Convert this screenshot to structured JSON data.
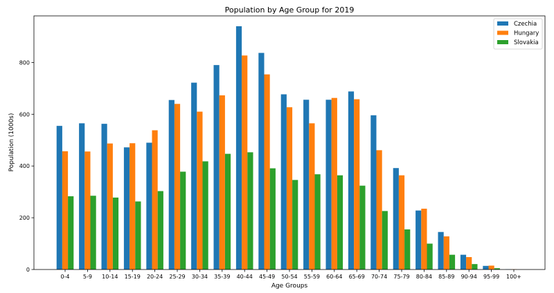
{
  "chart_data": {
    "type": "bar",
    "title": "Population by Age Group for 2019",
    "xlabel": "Age Groups",
    "ylabel": "Population (1000s)",
    "ylim": [
      0,
      980
    ],
    "yticks": [
      0,
      200,
      400,
      600,
      800
    ],
    "grid": false,
    "legend_position": "top-right",
    "categories": [
      "0-4",
      "5-9",
      "10-14",
      "15-19",
      "20-24",
      "25-29",
      "30-34",
      "35-39",
      "40-44",
      "45-49",
      "50-54",
      "55-59",
      "60-64",
      "65-69",
      "70-74",
      "75-79",
      "80-84",
      "85-89",
      "90-94",
      "95-99",
      "100+"
    ],
    "series": [
      {
        "name": "Czechia",
        "color": "#1f77b4",
        "values": [
          555,
          565,
          563,
          472,
          490,
          655,
          722,
          790,
          940,
          837,
          677,
          656,
          656,
          688,
          596,
          392,
          228,
          145,
          57,
          14,
          1
        ]
      },
      {
        "name": "Hungary",
        "color": "#ff7f0e",
        "values": [
          457,
          456,
          487,
          488,
          538,
          640,
          610,
          673,
          827,
          754,
          627,
          565,
          663,
          658,
          461,
          364,
          235,
          128,
          48,
          15,
          1
        ]
      },
      {
        "name": "Slovakia",
        "color": "#2ca02c",
        "values": [
          283,
          285,
          278,
          263,
          303,
          378,
          418,
          447,
          453,
          391,
          346,
          368,
          364,
          324,
          226,
          155,
          100,
          57,
          21,
          5,
          0
        ]
      }
    ]
  }
}
